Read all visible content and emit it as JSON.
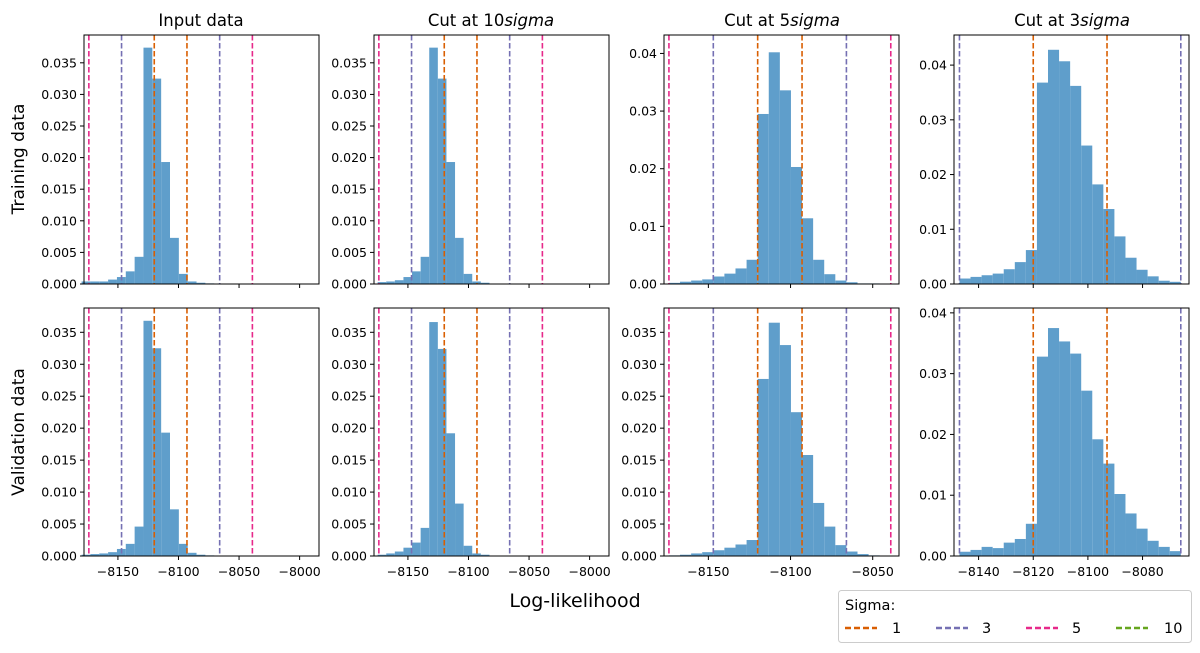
{
  "figure": {
    "xlabel": "Log-likelihood",
    "row_labels": [
      "Training data",
      "Validation data"
    ],
    "column_titles": [
      "Input data",
      "Cut at 10",
      "Cut at 5",
      "Cut at 3"
    ],
    "column_title_suffix": "sigma",
    "legend": {
      "title": "Sigma:",
      "entries": [
        {
          "label": "1",
          "color": "#d95f02"
        },
        {
          "label": "3",
          "color": "#7570b3"
        },
        {
          "label": "5",
          "color": "#e7298a"
        },
        {
          "label": "10",
          "color": "#66a61e"
        }
      ]
    },
    "bar_color": "#5f9ecb"
  },
  "chart_data": [
    {
      "type": "bar",
      "row": "Training data",
      "title": "Input data",
      "xlim": [
        -8178,
        -7984
      ],
      "ylim": [
        0,
        0.0394
      ],
      "xticks": [
        -8150,
        -8100,
        -8050,
        -8000
      ],
      "tick_labels_shown": false,
      "yticks": [
        0,
        0.005,
        0.01,
        0.015,
        0.02,
        0.025,
        0.03,
        0.035
      ],
      "yticklabels": [
        "0.000",
        "0.005",
        "0.010",
        "0.015",
        "0.020",
        "0.025",
        "0.030",
        "0.035"
      ],
      "bins": {
        "start": -8180,
        "width": 7.3,
        "counts": [
          0.0004,
          0.0004,
          0.0004,
          0.0007,
          0.0011,
          0.002,
          0.0043,
          0.0374,
          0.0325,
          0.0193,
          0.0073,
          0.0016,
          0.0004,
          0.0002,
          0.0001
        ]
      },
      "sigma_lines": [
        {
          "sigma": "1",
          "x": [
            -8120,
            -8093
          ]
        },
        {
          "sigma": "3",
          "x": [
            -8147,
            -8066
          ]
        },
        {
          "sigma": "5",
          "x": [
            -8174,
            -8039
          ]
        }
      ]
    },
    {
      "type": "bar",
      "row": "Training data",
      "title": "Cut at 10 sigma",
      "xlim": [
        -8178,
        -7984
      ],
      "ylim": [
        0,
        0.0394
      ],
      "xticks": [
        -8150,
        -8100,
        -8050,
        -8000
      ],
      "tick_labels_shown": false,
      "yticks": [
        0,
        0.005,
        0.01,
        0.015,
        0.02,
        0.025,
        0.03,
        0.035
      ],
      "yticklabels": [
        "0.000",
        "0.005",
        "0.010",
        "0.015",
        "0.020",
        "0.025",
        "0.030",
        "0.035"
      ],
      "bins": {
        "start": -8175,
        "width": 7.1,
        "counts": [
          0.0003,
          0.0004,
          0.0006,
          0.0011,
          0.002,
          0.0043,
          0.0374,
          0.0325,
          0.0193,
          0.0073,
          0.0016,
          0.0004,
          0.0002
        ]
      },
      "sigma_lines": [
        {
          "sigma": "1",
          "x": [
            -8120,
            -8093
          ]
        },
        {
          "sigma": "3",
          "x": [
            -8147,
            -8066
          ]
        },
        {
          "sigma": "5",
          "x": [
            -8174,
            -8039
          ]
        }
      ]
    },
    {
      "type": "bar",
      "row": "Training data",
      "title": "Cut at 5 sigma",
      "xlim": [
        -8177,
        -8034
      ],
      "ylim": [
        0,
        0.0432
      ],
      "xticks": [
        -8150,
        -8100,
        -8050
      ],
      "tick_labels_shown": false,
      "yticks": [
        0,
        0.01,
        0.02,
        0.03,
        0.04
      ],
      "yticklabels": [
        "0.00",
        "0.01",
        "0.02",
        "0.03",
        "0.04"
      ],
      "bins": {
        "start": -8174,
        "width": 6.75,
        "counts": [
          0.0002,
          0.0004,
          0.0006,
          0.0008,
          0.0013,
          0.0018,
          0.0027,
          0.0042,
          0.0295,
          0.0402,
          0.0336,
          0.0203,
          0.0114,
          0.0042,
          0.0017,
          0.0006,
          0.0003,
          0.0001,
          0.0001
        ]
      },
      "sigma_lines": [
        {
          "sigma": "1",
          "x": [
            -8120,
            -8093
          ]
        },
        {
          "sigma": "3",
          "x": [
            -8147,
            -8066
          ]
        },
        {
          "sigma": "5",
          "x": [
            -8174,
            -8039
          ]
        }
      ]
    },
    {
      "type": "bar",
      "row": "Training data",
      "title": "Cut at 3 sigma",
      "xlim": [
        -8149,
        -8063
      ],
      "ylim": [
        0,
        0.0455
      ],
      "xticks": [
        -8140,
        -8120,
        -8100,
        -8080
      ],
      "tick_labels_shown": false,
      "yticks": [
        0,
        0.01,
        0.02,
        0.03,
        0.04
      ],
      "yticklabels": [
        "0.00",
        "0.01",
        "0.02",
        "0.03",
        "0.04"
      ],
      "bins": {
        "start": -8147,
        "width": 4.05,
        "counts": [
          0.001,
          0.0013,
          0.0016,
          0.0019,
          0.0027,
          0.004,
          0.0062,
          0.0368,
          0.0428,
          0.0407,
          0.0362,
          0.0253,
          0.0182,
          0.0137,
          0.0087,
          0.0048,
          0.0026,
          0.0014,
          0.0006,
          0.0004
        ]
      },
      "sigma_lines": [
        {
          "sigma": "1",
          "x": [
            -8120,
            -8093
          ]
        },
        {
          "sigma": "3",
          "x": [
            -8147,
            -8066
          ]
        }
      ]
    },
    {
      "type": "bar",
      "row": "Validation data",
      "title": "Input data",
      "xlim": [
        -8178,
        -7984
      ],
      "ylim": [
        0,
        0.0388
      ],
      "xticks": [
        -8150,
        -8100,
        -8050,
        -8000
      ],
      "xticklabels": [
        "−8150",
        "−8100",
        "−8050",
        "−8000"
      ],
      "yticks": [
        0,
        0.005,
        0.01,
        0.015,
        0.02,
        0.025,
        0.03,
        0.035
      ],
      "yticklabels": [
        "0.000",
        "0.005",
        "0.010",
        "0.015",
        "0.020",
        "0.025",
        "0.030",
        "0.035"
      ],
      "bins": {
        "start": -8180,
        "width": 7.3,
        "counts": [
          0.0002,
          0.0003,
          0.0004,
          0.0006,
          0.0011,
          0.0019,
          0.0046,
          0.0368,
          0.0325,
          0.0193,
          0.0073,
          0.0019,
          0.0005,
          0.0002,
          0.0001
        ]
      },
      "sigma_lines": [
        {
          "sigma": "1",
          "x": [
            -8120,
            -8093
          ]
        },
        {
          "sigma": "3",
          "x": [
            -8147,
            -8066
          ]
        },
        {
          "sigma": "5",
          "x": [
            -8174,
            -8039
          ]
        }
      ]
    },
    {
      "type": "bar",
      "row": "Validation data",
      "title": "Cut at 10 sigma",
      "xlim": [
        -8178,
        -7984
      ],
      "ylim": [
        0,
        0.0388
      ],
      "xticks": [
        -8150,
        -8100,
        -8050,
        -8000
      ],
      "xticklabels": [
        "−8150",
        "−8100",
        "−8050",
        "−8000"
      ],
      "yticks": [
        0,
        0.005,
        0.01,
        0.015,
        0.02,
        0.025,
        0.03,
        0.035
      ],
      "yticklabels": [
        "0.000",
        "0.005",
        "0.010",
        "0.015",
        "0.020",
        "0.025",
        "0.030",
        "0.035"
      ],
      "bins": {
        "start": -8175,
        "width": 7.1,
        "counts": [
          0.0002,
          0.0004,
          0.0007,
          0.0013,
          0.0021,
          0.0044,
          0.0366,
          0.0324,
          0.0192,
          0.0082,
          0.0016,
          0.0004,
          0.0002
        ]
      },
      "sigma_lines": [
        {
          "sigma": "1",
          "x": [
            -8120,
            -8093
          ]
        },
        {
          "sigma": "3",
          "x": [
            -8147,
            -8066
          ]
        },
        {
          "sigma": "5",
          "x": [
            -8174,
            -8039
          ]
        }
      ]
    },
    {
      "type": "bar",
      "row": "Validation data",
      "title": "Cut at 5 sigma",
      "xlim": [
        -8177,
        -8034
      ],
      "ylim": [
        0,
        0.0388
      ],
      "xticks": [
        -8150,
        -8100,
        -8050
      ],
      "xticklabels": [
        "−8150",
        "−8100",
        "−8050"
      ],
      "yticks": [
        0,
        0.005,
        0.01,
        0.015,
        0.02,
        0.025,
        0.03,
        0.035
      ],
      "yticklabels": [
        "0.000",
        "0.005",
        "0.010",
        "0.015",
        "0.020",
        "0.025",
        "0.030",
        "0.035"
      ],
      "bins": {
        "start": -8174,
        "width": 6.75,
        "counts": [
          0.0001,
          0.0002,
          0.0004,
          0.0006,
          0.0009,
          0.0013,
          0.0018,
          0.0025,
          0.0277,
          0.0365,
          0.033,
          0.0225,
          0.0158,
          0.0083,
          0.0046,
          0.0017,
          0.0007,
          0.0003,
          0.0001
        ]
      },
      "sigma_lines": [
        {
          "sigma": "1",
          "x": [
            -8120,
            -8093
          ]
        },
        {
          "sigma": "3",
          "x": [
            -8147,
            -8066
          ]
        },
        {
          "sigma": "5",
          "x": [
            -8174,
            -8039
          ]
        }
      ]
    },
    {
      "type": "bar",
      "row": "Validation data",
      "title": "Cut at 3 sigma",
      "xlim": [
        -8149,
        -8063
      ],
      "ylim": [
        0,
        0.0408
      ],
      "xticks": [
        -8140,
        -8120,
        -8100,
        -8080
      ],
      "xticklabels": [
        "−8140",
        "−8120",
        "−8100",
        "−8080"
      ],
      "yticks": [
        0,
        0.01,
        0.02,
        0.03,
        0.04
      ],
      "yticklabels": [
        "0.00",
        "0.01",
        "0.02",
        "0.03",
        "0.04"
      ],
      "bins": {
        "start": -8147,
        "width": 4.05,
        "counts": [
          0.0007,
          0.001,
          0.0015,
          0.0013,
          0.0022,
          0.0028,
          0.0053,
          0.0328,
          0.0375,
          0.0353,
          0.0333,
          0.0272,
          0.0192,
          0.0152,
          0.0102,
          0.007,
          0.0045,
          0.0025,
          0.0015,
          0.0008
        ]
      },
      "sigma_lines": [
        {
          "sigma": "1",
          "x": [
            -8120,
            -8093
          ]
        },
        {
          "sigma": "3",
          "x": [
            -8147,
            -8066
          ]
        }
      ]
    }
  ]
}
